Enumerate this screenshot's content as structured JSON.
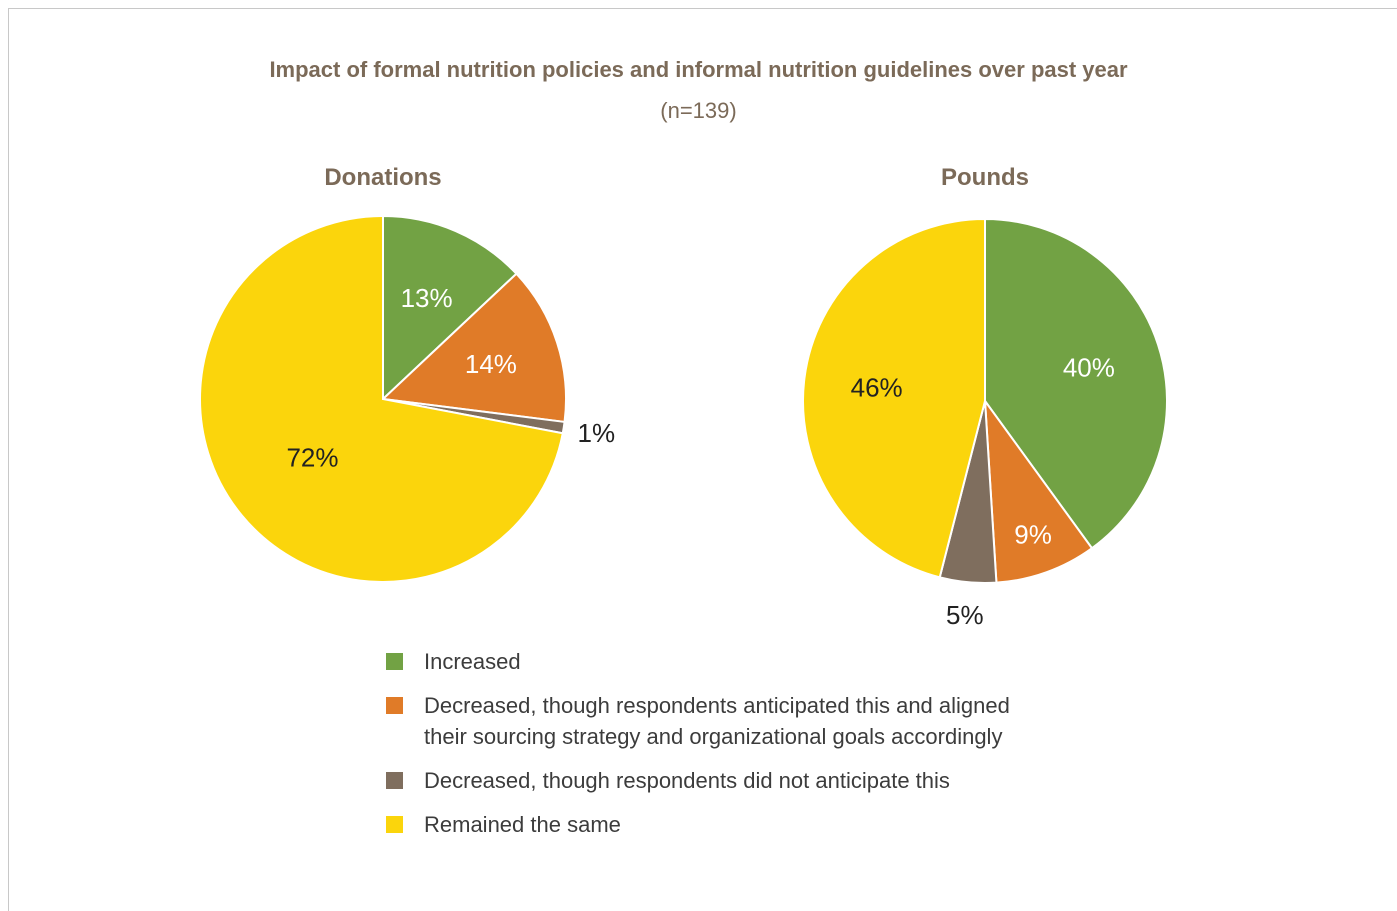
{
  "title": "Impact of formal nutrition policies and informal nutrition guidelines over past year",
  "subtitle": "(n=139)",
  "colors": {
    "increased": "#72a244",
    "decreased_anticipated": "#e07b28",
    "decreased_not_anticipated": "#7f6e5e",
    "remained": "#fbd50c",
    "title_text": "#7b6a58"
  },
  "legend": [
    {
      "label": "Increased",
      "color_key": "increased"
    },
    {
      "label": "Decreased, though respondents anticipated this and aligned their sourcing strategy and organizational goals accordingly",
      "color_key": "decreased_anticipated"
    },
    {
      "label": "Decreased, though respondents did not anticipate this",
      "color_key": "decreased_not_anticipated"
    },
    {
      "label": "Remained the same",
      "color_key": "remained"
    }
  ],
  "chart_data": [
    {
      "type": "pie",
      "title": "Donations",
      "categories": [
        "Increased",
        "Decreased, though respondents anticipated this and aligned their sourcing strategy and organizational goals accordingly",
        "Decreased, though respondents did not anticipate this",
        "Remained the same"
      ],
      "values": [
        13,
        14,
        1,
        72
      ],
      "labels": [
        "13%",
        "14%",
        "1%",
        "72%"
      ]
    },
    {
      "type": "pie",
      "title": "Pounds",
      "categories": [
        "Increased",
        "Decreased, though respondents anticipated this and aligned their sourcing strategy and organizational goals accordingly",
        "Decreased, though respondents did not anticipate this",
        "Remained the same"
      ],
      "values": [
        40,
        9,
        5,
        46
      ],
      "labels": [
        "40%",
        "9%",
        "5%",
        "46%"
      ]
    }
  ]
}
